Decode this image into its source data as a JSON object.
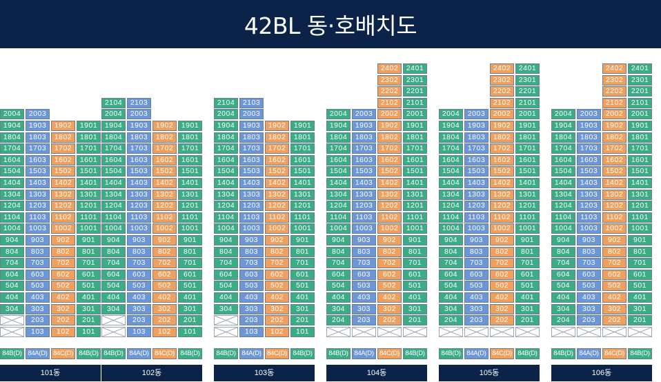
{
  "title": "42BL 동·호배치도",
  "colors": {
    "header": "#0c2349",
    "84B": "#3aad85",
    "84A": "#6d96d9",
    "84C": "#f0a05c"
  },
  "cols": [
    {
      "x": -16,
      "type": "84B"
    },
    {
      "x": 21,
      "type": "84A"
    },
    {
      "x": 58,
      "type": "84C"
    },
    {
      "x": 95,
      "type": "84B"
    }
  ],
  "buildings": [
    {
      "name": "101동",
      "left": 16,
      "col_top": [
        20,
        20,
        19,
        19
      ],
      "empty": [
        [
          0,
          2
        ]
      ],
      "units": [
        "04",
        "03",
        "02",
        "01"
      ],
      "types": [
        "84B(D)",
        "84A(D)",
        "84C(D)",
        "84B(D)"
      ]
    },
    {
      "name": "102동",
      "left": 163,
      "col_top": [
        21,
        21,
        19,
        19
      ],
      "empty": [
        [
          0,
          2
        ]
      ],
      "units": [
        "04",
        "03",
        "02",
        "01"
      ],
      "types": [
        "84B(D)",
        "84A(D)",
        "84C(D)",
        "84B(D)"
      ]
    },
    {
      "name": "103동",
      "left": 326,
      "col_top": [
        21,
        21,
        19,
        19
      ],
      "empty": [
        [
          0,
          2
        ]
      ],
      "units": [
        "04",
        "03",
        "02",
        "01"
      ],
      "types": [
        "84B(D)",
        "84A(D)",
        "84C(D)",
        "84B(D)"
      ]
    },
    {
      "name": "104동",
      "left": 489,
      "col_top": [
        20,
        20,
        24,
        24
      ],
      "empty": [
        [
          0,
          1
        ],
        [
          1,
          1
        ],
        [
          2,
          1
        ],
        [
          3,
          1
        ]
      ],
      "units": [
        "04",
        "03",
        "02",
        "01"
      ],
      "types": [
        "84B(D)",
        "84A(D)",
        "84C(D)",
        "84B(D)"
      ]
    },
    {
      "name": "105동",
      "left": 652,
      "col_top": [
        20,
        20,
        24,
        24
      ],
      "empty": [
        [
          0,
          1
        ],
        [
          1,
          1
        ],
        [
          2,
          1
        ],
        [
          3,
          1
        ]
      ],
      "units": [
        "04",
        "03",
        "02",
        "01"
      ],
      "types": [
        "84B(D)",
        "84A(D)",
        "84C(D)",
        "84B(D)"
      ]
    },
    {
      "name": "106동",
      "left": 815,
      "col_top": [
        20,
        20,
        24,
        24
      ],
      "empty": [
        [
          0,
          1
        ],
        [
          1,
          1
        ],
        [
          2,
          1
        ],
        [
          3,
          1
        ]
      ],
      "units": [
        "04",
        "03",
        "02",
        "01"
      ],
      "types": [
        "84B(D)",
        "84A(D)",
        "84C(D)",
        "84B(D)"
      ]
    }
  ]
}
